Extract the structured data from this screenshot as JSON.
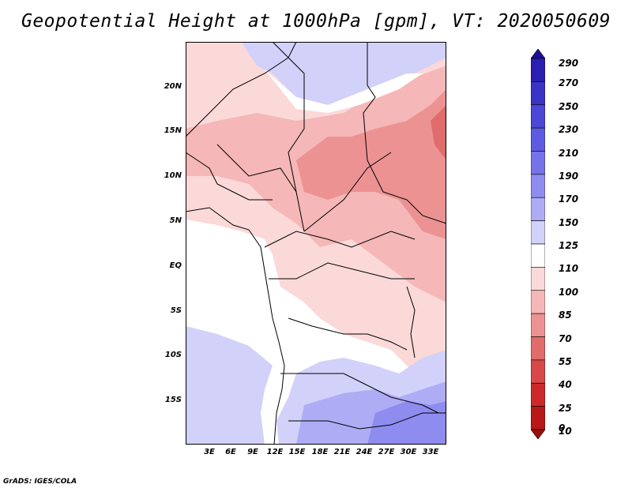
{
  "title": "Geopotential Height at 1000hPa [gpm], VT: 2020050609",
  "credit": "GrADS: IGES/COLA",
  "map": {
    "lat_labels": [
      "20N",
      "15N",
      "10N",
      "5N",
      "EQ",
      "5S",
      "10S",
      "15S"
    ],
    "lon_labels": [
      "3E",
      "6E",
      "9E",
      "12E",
      "15E",
      "18E",
      "21E",
      "24E",
      "27E",
      "30E",
      "33E"
    ]
  },
  "colorbar": {
    "labels": [
      "290",
      "270",
      "250",
      "230",
      "210",
      "190",
      "170",
      "150",
      "125",
      "110",
      "100",
      "85",
      "70",
      "55",
      "40",
      "25",
      "10",
      "0"
    ],
    "colors": [
      "#1d0f96",
      "#2a1fb0",
      "#3a33c8",
      "#4c47d6",
      "#5e5be2",
      "#7572ea",
      "#8f8cf0",
      "#aeacf5",
      "#d2d1f9",
      "#ffffff",
      "#fbd9d9",
      "#f5b7b7",
      "#ec9292",
      "#e06c6c",
      "#d84848",
      "#cc2a2a",
      "#b81818",
      "#9c0e0e"
    ]
  }
}
